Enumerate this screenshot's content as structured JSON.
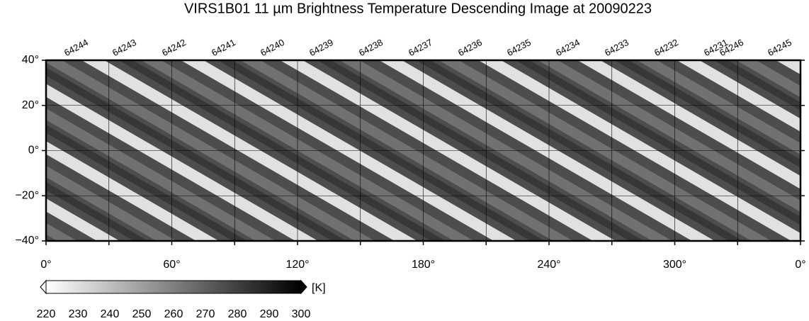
{
  "title": "VIRS1B01 11 µm Brightness Temperature Descending Image at 20090223",
  "orbits": [
    "64244",
    "64243",
    "64242",
    "64241",
    "64240",
    "64239",
    "64238",
    "64237",
    "64236",
    "64235",
    "64234",
    "64233",
    "64232",
    "64231",
    "64246",
    "64245"
  ],
  "lat_labels": [
    "40°",
    "20°",
    "0°",
    "−20°",
    "−40°"
  ],
  "lon_labels": [
    "0°",
    "60°",
    "120°",
    "180°",
    "240°",
    "300°",
    "0°"
  ],
  "colorbar": {
    "ticks": [
      "220",
      "230",
      "240",
      "250",
      "260",
      "270",
      "280",
      "290",
      "300"
    ],
    "unit": "[K]"
  }
}
